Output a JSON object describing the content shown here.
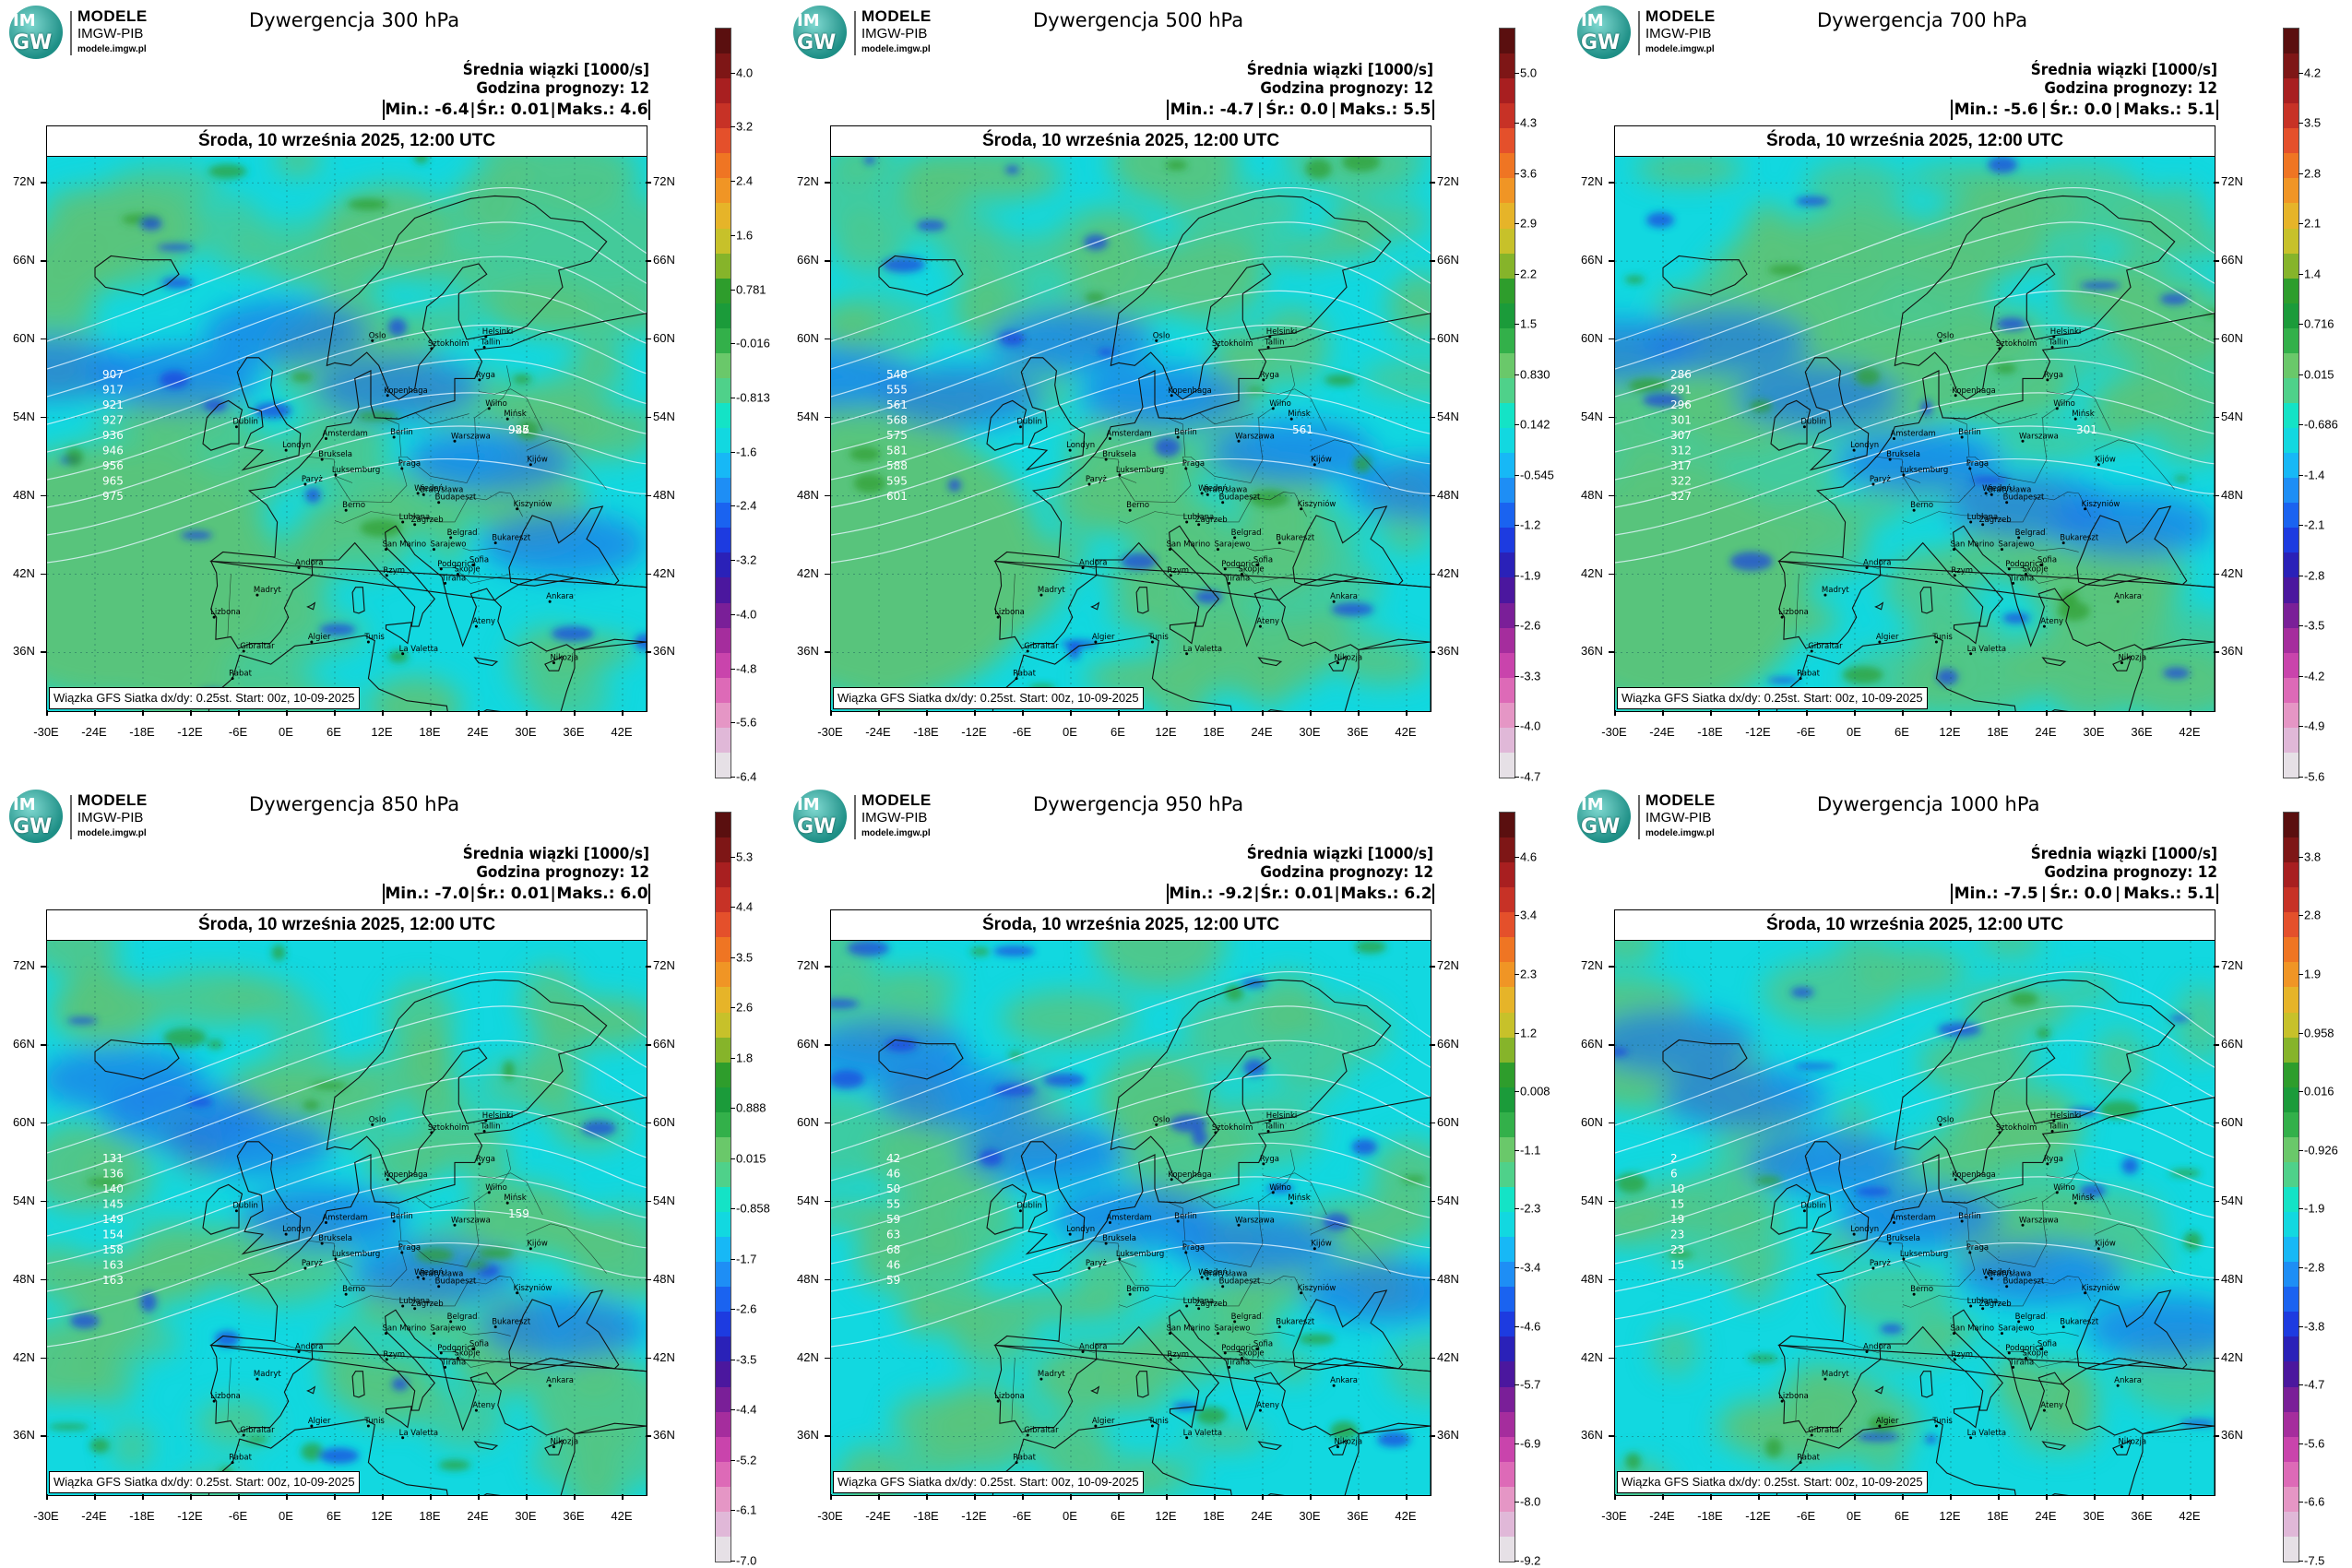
{
  "logo": {
    "title": "MODELE",
    "subtitle": "IMGW-PIB",
    "url": "modele.imgw.pl",
    "mark_top": "IM",
    "mark_bottom": "GW"
  },
  "common": {
    "header1": "Średnia wiązki [1000/s]",
    "header2": "Godzina prognozy: 12",
    "date": "Środa, 10 września 2025, 12:00 UTC",
    "credit": "Wiązka GFS Siatka dx/dy: 0.25st. Start: 00z, 10-09-2025",
    "lat_labels": [
      "72N",
      "66N",
      "60N",
      "54N",
      "48N",
      "42N",
      "36N"
    ],
    "lon_labels": [
      "-30E",
      "-24E",
      "-18E",
      "-12E",
      "-6E",
      "0E",
      "6E",
      "12E",
      "18E",
      "24E",
      "30E",
      "36E",
      "42E"
    ]
  },
  "colors": {
    "ocean_base": "#12d8e0",
    "land_green": "#59c47c",
    "conv_blue": "#1e78e8",
    "strong_blue": "#1a3fe0",
    "contour": "#e8f6ff",
    "coast": "#111111"
  },
  "colorbar_colors": [
    "#e6e0e6",
    "#e0b8d8",
    "#e596c5",
    "#dd6ab7",
    "#c944ac",
    "#a52d9d",
    "#7a1f98",
    "#4b179e",
    "#2a21b8",
    "#1d3be0",
    "#1a63f0",
    "#1e8ef5",
    "#17b8f6",
    "#12d8e0",
    "#14e3c6",
    "#4fd18a",
    "#6ac86a",
    "#33b04a",
    "#1b9b3a",
    "#2e9d2c",
    "#86b42a",
    "#c7c12a",
    "#e6b429",
    "#f09525",
    "#ef7523",
    "#e4502b",
    "#c73226",
    "#a81f20",
    "#7e1616",
    "#5a0f0f"
  ],
  "panels": [
    {
      "title": "Dywergencja 300 hPa",
      "min": "-6.4",
      "avg": "0.01",
      "max": "4.6",
      "colorbar_labels": [
        "4.0",
        "3.2",
        "2.4",
        "1.6",
        "0.781",
        "-0.016",
        "-0.813",
        "-1.6",
        "-2.4",
        "-3.2",
        "-4.0",
        "-4.8",
        "-5.6",
        "-6.4"
      ],
      "contour_labels": [
        "907",
        "917",
        "921",
        "927",
        "936",
        "946",
        "956",
        "965",
        "975",
        "985",
        "927",
        "936"
      ]
    },
    {
      "title": "Dywergencja 500 hPa",
      "min": "-4.7",
      "avg": "0.0",
      "max": "5.5",
      "colorbar_labels": [
        "5.0",
        "4.3",
        "3.6",
        "2.9",
        "2.2",
        "1.5",
        "0.830",
        "0.142",
        "-0.545",
        "-1.2",
        "-1.9",
        "-2.6",
        "-3.3",
        "-4.0",
        "-4.7"
      ],
      "contour_labels": [
        "548",
        "555",
        "561",
        "568",
        "575",
        "581",
        "588",
        "595",
        "601",
        "561"
      ]
    },
    {
      "title": "Dywergencja 700 hPa",
      "min": "-5.6",
      "avg": "0.0",
      "max": "5.1",
      "colorbar_labels": [
        "4.2",
        "3.5",
        "2.8",
        "2.1",
        "1.4",
        "0.716",
        "0.015",
        "-0.686",
        "-1.4",
        "-2.1",
        "-2.8",
        "-3.5",
        "-4.2",
        "-4.9",
        "-5.6"
      ],
      "contour_labels": [
        "286",
        "291",
        "296",
        "301",
        "307",
        "312",
        "317",
        "322",
        "327",
        "301"
      ]
    },
    {
      "title": "Dywergencja 850 hPa",
      "min": "-7.0",
      "avg": "0.01",
      "max": "6.0",
      "colorbar_labels": [
        "5.3",
        "4.4",
        "3.5",
        "2.6",
        "1.8",
        "0.888",
        "0.015",
        "-0.858",
        "-1.7",
        "-2.6",
        "-3.5",
        "-4.4",
        "-5.2",
        "-6.1",
        "-7.0"
      ],
      "contour_labels": [
        "131",
        "136",
        "140",
        "145",
        "149",
        "154",
        "158",
        "163",
        "163",
        "159"
      ]
    },
    {
      "title": "Dywergencja 950 hPa",
      "min": "-9.2",
      "avg": "0.01",
      "max": "6.2",
      "colorbar_labels": [
        "4.6",
        "3.4",
        "2.3",
        "1.2",
        "0.008",
        "-1.1",
        "-2.3",
        "-3.4",
        "-4.6",
        "-5.7",
        "-6.9",
        "-8.0",
        "-9.2"
      ],
      "contour_labels": [
        "42",
        "46",
        "50",
        "55",
        "59",
        "63",
        "68",
        "46",
        "59"
      ]
    },
    {
      "title": "Dywergencja 1000 hPa",
      "min": "-7.5",
      "avg": "0.0",
      "max": "5.1",
      "colorbar_labels": [
        "3.8",
        "2.8",
        "1.9",
        "0.958",
        "0.016",
        "-0.926",
        "-1.9",
        "-2.8",
        "-3.8",
        "-4.7",
        "-5.6",
        "-6.6",
        "-7.5"
      ],
      "contour_labels": [
        "2",
        "6",
        "10",
        "15",
        "19",
        "23",
        "23",
        "15"
      ]
    }
  ],
  "cities": [
    [
      "Oslo",
      1
    ],
    [
      "Sztokholm",
      1
    ],
    [
      "Helsinki",
      1
    ],
    [
      "Tallin",
      1
    ],
    [
      "Ryga",
      1
    ],
    [
      "Wilno",
      1
    ],
    [
      "Mińsk",
      1
    ],
    [
      "Kopenhaga",
      1
    ],
    [
      "Dublin",
      1
    ],
    [
      "Amsterdam",
      1
    ],
    [
      "Londyn",
      1
    ],
    [
      "Bruksela",
      1
    ],
    [
      "Luksemburg",
      1
    ],
    [
      "Berlin",
      1
    ],
    [
      "Warszawa",
      1
    ],
    [
      "Paryż",
      1
    ],
    [
      "Praga",
      1
    ],
    [
      "Kijów",
      1
    ],
    [
      "Wiedeń",
      1
    ],
    [
      "Bratysława",
      1
    ],
    [
      "Berno",
      1
    ],
    [
      "Budapeszt",
      1
    ],
    [
      "Kiszyniów",
      1
    ],
    [
      "Lublana",
      1
    ],
    [
      "Zagrzeb",
      1
    ],
    [
      "Belgrad",
      1
    ],
    [
      "Bukareszt",
      1
    ],
    [
      "San Marino",
      1
    ],
    [
      "Sarajewo",
      1
    ],
    [
      "Podgorica",
      1
    ],
    [
      "Sofia",
      1
    ],
    [
      "Skopje",
      1
    ],
    [
      "Rzym",
      1
    ],
    [
      "Tirana",
      1
    ],
    [
      "Andora",
      1
    ],
    [
      "Madryt",
      1
    ],
    [
      "Lizbona",
      1
    ],
    [
      "Ateny",
      1
    ],
    [
      "Ankara",
      1
    ],
    [
      "Algier",
      1
    ],
    [
      "Tunis",
      1
    ],
    [
      "La Valetta",
      1
    ],
    [
      "Gibraltar",
      1
    ],
    [
      "Rabat",
      1
    ],
    [
      "Nikozja",
      1
    ]
  ]
}
